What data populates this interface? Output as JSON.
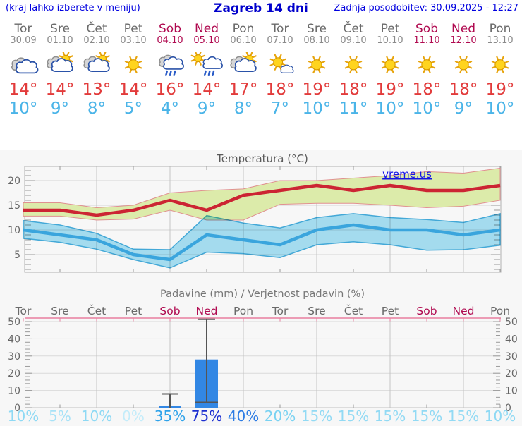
{
  "header": {
    "hint": "(kraj lahko izberete v meniju)",
    "title": "Zagreb 14 dni",
    "updated": "Zadnja posodobitev: 30.09.2025 - 12:27",
    "link_color": "#0000e0",
    "title_color": "#0000cc"
  },
  "days": [
    {
      "name": "Tor",
      "date": "30.09",
      "weekend": false,
      "icon": "cloudy",
      "high": "14°",
      "low": "10°"
    },
    {
      "name": "Sre",
      "date": "01.10",
      "weekend": false,
      "icon": "partly-sunny",
      "high": "14°",
      "low": "9°"
    },
    {
      "name": "Čet",
      "date": "02.10",
      "weekend": false,
      "icon": "partly-sunny",
      "high": "13°",
      "low": "8°"
    },
    {
      "name": "Pet",
      "date": "03.10",
      "weekend": false,
      "icon": "sunny",
      "high": "14°",
      "low": "5°"
    },
    {
      "name": "Sob",
      "date": "04.10",
      "weekend": true,
      "icon": "rain",
      "high": "16°",
      "low": "4°"
    },
    {
      "name": "Ned",
      "date": "05.10",
      "weekend": true,
      "icon": "sun-rain",
      "high": "14°",
      "low": "9°"
    },
    {
      "name": "Pon",
      "date": "06.10",
      "weekend": false,
      "icon": "partly-sunny",
      "high": "17°",
      "low": "8°"
    },
    {
      "name": "Tor",
      "date": "07.10",
      "weekend": false,
      "icon": "mostly-sunny",
      "high": "18°",
      "low": "7°"
    },
    {
      "name": "Sre",
      "date": "08.10",
      "weekend": false,
      "icon": "sunny",
      "high": "19°",
      "low": "10°"
    },
    {
      "name": "Čet",
      "date": "09.10",
      "weekend": false,
      "icon": "sunny",
      "high": "18°",
      "low": "11°"
    },
    {
      "name": "Pet",
      "date": "10.10",
      "weekend": false,
      "icon": "sunny",
      "high": "19°",
      "low": "10°"
    },
    {
      "name": "Sob",
      "date": "11.10",
      "weekend": true,
      "icon": "sunny",
      "high": "18°",
      "low": "10°"
    },
    {
      "name": "Ned",
      "date": "12.10",
      "weekend": true,
      "icon": "sunny",
      "high": "18°",
      "low": "9°"
    },
    {
      "name": "Pon",
      "date": "13.10",
      "weekend": false,
      "icon": "sunny",
      "high": "19°",
      "low": "10°"
    }
  ],
  "colors": {
    "weekday": "#6a6a6a",
    "date": "#8a8a8a",
    "weekend": "#b00a50",
    "high": "#e23b3b",
    "low": "#4ab4e8",
    "grid": "#d6d6d6",
    "grid_dark": "#c4c4c4",
    "axis_text": "#666666",
    "border": "#b0b0b0",
    "pink_axis": "#e87f9f"
  },
  "chart_data": [
    {
      "type": "area",
      "title": "Temperatura (°C)",
      "watermark": "vreme.us",
      "ytick_labels": [
        "5",
        "10",
        "15",
        "20"
      ],
      "yticks": [
        5,
        10,
        15,
        20
      ],
      "ylim": [
        1.4,
        22.9
      ],
      "x_days": [
        "Tor",
        "Sre",
        "Čet",
        "Pet",
        "Sob",
        "Ned",
        "Pon",
        "Tor",
        "Sre",
        "Čet",
        "Pet",
        "Sob",
        "Ned",
        "Pon"
      ],
      "series": [
        {
          "name": "high-temperature",
          "color": "#cc2433",
          "band_color": "#dcebaa",
          "band_edge": "#e09090",
          "values": [
            14,
            14,
            13,
            14,
            16,
            14,
            17,
            18,
            19,
            18,
            19,
            18,
            18,
            19
          ],
          "upper": [
            15.5,
            15.5,
            14.5,
            15,
            17.5,
            18,
            18.3,
            20,
            20,
            20.5,
            21,
            21.8,
            21.5,
            22.5
          ],
          "lower": [
            12.8,
            12.8,
            12,
            12.2,
            14,
            12,
            12,
            15.2,
            15.4,
            15.4,
            15,
            14.5,
            14.8,
            16
          ]
        },
        {
          "name": "low-temperature",
          "color": "#3aa5dd",
          "band_color": "#a9e2f6",
          "band_edge": "#45aede",
          "values": [
            10,
            9,
            8,
            5,
            4,
            9,
            8,
            7,
            10,
            11,
            10,
            10,
            9,
            10
          ],
          "upper": [
            11.9,
            11,
            9.3,
            6.1,
            6,
            12.9,
            11.4,
            10.4,
            12.5,
            13.3,
            12.5,
            12.1,
            11.5,
            13.3
          ],
          "lower": [
            8.3,
            7.5,
            6.1,
            4,
            2.3,
            5.5,
            5.2,
            4.4,
            7,
            7.6,
            7,
            5.9,
            6,
            6.9
          ]
        }
      ]
    },
    {
      "type": "bar",
      "title": "Padavine (mm) / Verjetnost padavin (%)",
      "ytick_labels": [
        "0",
        "10",
        "20",
        "30",
        "40",
        "50"
      ],
      "yticks": [
        0,
        10,
        20,
        30,
        40,
        50
      ],
      "ylim": [
        0,
        51
      ],
      "days": [
        {
          "label": "Tor",
          "weekend": false
        },
        {
          "label": "Sre",
          "weekend": false
        },
        {
          "label": "Čet",
          "weekend": false
        },
        {
          "label": "Pet",
          "weekend": false
        },
        {
          "label": "Sob",
          "weekend": true
        },
        {
          "label": "Ned",
          "weekend": true
        },
        {
          "label": "Pon",
          "weekend": false
        },
        {
          "label": "Tor",
          "weekend": false
        },
        {
          "label": "Sre",
          "weekend": false
        },
        {
          "label": "Čet",
          "weekend": false
        },
        {
          "label": "Pet",
          "weekend": false
        },
        {
          "label": "Sob",
          "weekend": true
        },
        {
          "label": "Ned",
          "weekend": true
        },
        {
          "label": "Pon",
          "weekend": false
        }
      ],
      "bar_color": "#3287e4",
      "whisker_color": "#555555",
      "bars": [
        {
          "day_index": 4,
          "value": 1,
          "whisker_low": 0,
          "whisker_high": 8
        },
        {
          "day_index": 5,
          "value": 28,
          "whisker_low": 3,
          "whisker_high": 51.3
        }
      ],
      "probabilities": [
        {
          "label": "10%",
          "color": "#8ed9f4"
        },
        {
          "label": "5%",
          "color": "#a8e2f7"
        },
        {
          "label": "10%",
          "color": "#8ed9f4"
        },
        {
          "label": "0%",
          "color": "#c3ecfa"
        },
        {
          "label": "35%",
          "color": "#2da2ea"
        },
        {
          "label": "75%",
          "color": "#1b2ed0"
        },
        {
          "label": "40%",
          "color": "#2d7ce4"
        },
        {
          "label": "20%",
          "color": "#79d2f2"
        },
        {
          "label": "15%",
          "color": "#92daf4"
        },
        {
          "label": "15%",
          "color": "#92daf4"
        },
        {
          "label": "15%",
          "color": "#92daf4"
        },
        {
          "label": "15%",
          "color": "#92daf4"
        },
        {
          "label": "15%",
          "color": "#92daf4"
        },
        {
          "label": "10%",
          "color": "#8ed9f4"
        }
      ]
    }
  ]
}
